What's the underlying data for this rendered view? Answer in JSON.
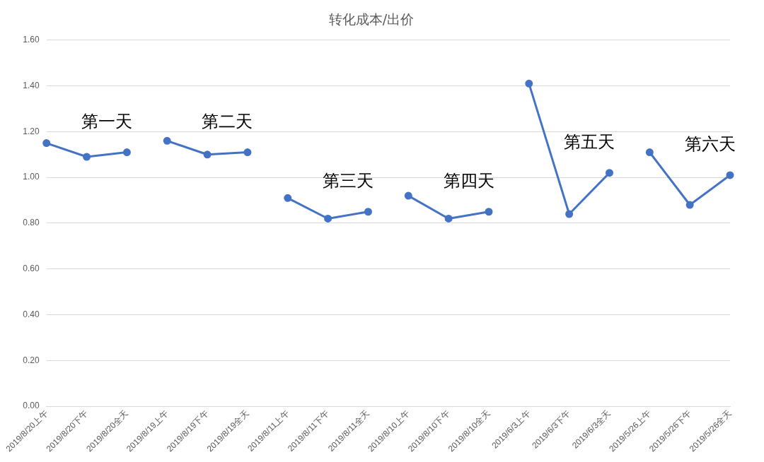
{
  "chart_data": {
    "type": "line",
    "title": "转化成本/出价",
    "categories": [
      "2019/8/20上午",
      "2019/8/20下午",
      "2019/8/20全天",
      "2019/8/19上午",
      "2019/8/19下午",
      "2019/8/19全天",
      "2019/8/11上午",
      "2019/8/11下午",
      "2019/8/11全天",
      "2019/8/10上午",
      "2019/8/10下午",
      "2019/8/10全天",
      "2019/6/3上午",
      "2019/6/3下午",
      "2019/6/3全天",
      "2019/5/26上午",
      "2019/5/26下午",
      "2019/5/26全天"
    ],
    "series": [
      {
        "color": "#4472c4",
        "values": [
          1.15,
          1.09,
          1.11,
          null,
          null,
          null,
          null,
          null,
          null,
          null,
          null,
          null,
          null,
          null,
          null,
          null,
          null,
          null
        ]
      },
      {
        "color": "#4472c4",
        "values": [
          null,
          null,
          null,
          1.16,
          1.1,
          1.11,
          null,
          null,
          null,
          null,
          null,
          null,
          null,
          null,
          null,
          null,
          null,
          null
        ]
      },
      {
        "color": "#4472c4",
        "values": [
          null,
          null,
          null,
          null,
          null,
          null,
          0.91,
          0.82,
          0.85,
          null,
          null,
          null,
          null,
          null,
          null,
          null,
          null,
          null
        ]
      },
      {
        "color": "#4472c4",
        "values": [
          null,
          null,
          null,
          null,
          null,
          null,
          null,
          null,
          null,
          0.92,
          0.82,
          0.85,
          null,
          null,
          null,
          null,
          null,
          null
        ]
      },
      {
        "color": "#4472c4",
        "values": [
          null,
          null,
          null,
          null,
          null,
          null,
          null,
          null,
          null,
          null,
          null,
          null,
          1.41,
          0.84,
          1.02,
          null,
          null,
          null
        ]
      },
      {
        "color": "#4472c4",
        "values": [
          null,
          null,
          null,
          null,
          null,
          null,
          null,
          null,
          null,
          null,
          null,
          null,
          null,
          null,
          null,
          1.11,
          0.88,
          1.01
        ]
      }
    ],
    "ylim": [
      0,
      1.6
    ],
    "yticks": [
      {
        "value": 0,
        "label": "0.00"
      },
      {
        "value": 0.2,
        "label": "0.20"
      },
      {
        "value": 0.4,
        "label": "0.40"
      },
      {
        "value": 0.6,
        "label": "0.60"
      },
      {
        "value": 0.8,
        "label": "0.80"
      },
      {
        "value": 1.0,
        "label": "1.00"
      },
      {
        "value": 1.2,
        "label": "1.20"
      },
      {
        "value": 1.4,
        "label": "1.40"
      },
      {
        "value": 1.6,
        "label": "1.60"
      }
    ],
    "grid": "y",
    "marker": "circle",
    "line_style": "solid",
    "annotations": [
      "第一天",
      "第二天",
      "第三天",
      "第四天",
      "第五天",
      "第六天"
    ]
  }
}
